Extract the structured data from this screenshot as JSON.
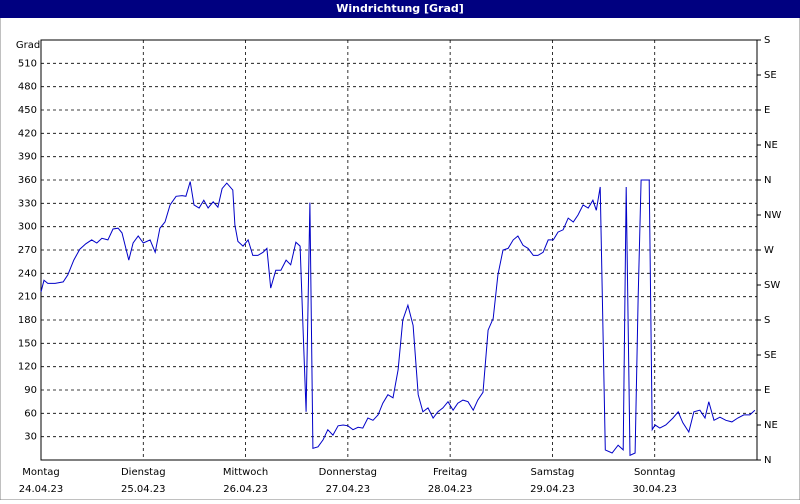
{
  "chart_data": {
    "type": "line",
    "title": "Windrichtung [Grad]",
    "y_label": "Grad",
    "color": "#0000c8",
    "grid": true,
    "xlim": [
      0,
      168
    ],
    "ylim": [
      0,
      540
    ],
    "y2lim": [
      0,
      540
    ],
    "xticks": [
      {
        "value": 0,
        "label": "Montag",
        "date": "24.04.23"
      },
      {
        "value": 24,
        "label": "Dienstag",
        "date": "25.04.23"
      },
      {
        "value": 48,
        "label": "Mittwoch",
        "date": "26.04.23"
      },
      {
        "value": 72,
        "label": "Donnerstag",
        "date": "27.04.23"
      },
      {
        "value": 96,
        "label": "Freitag",
        "date": "28.04.23"
      },
      {
        "value": 120,
        "label": "Samstag",
        "date": "29.04.23"
      },
      {
        "value": 144,
        "label": "Sonntag",
        "date": "30.04.23"
      }
    ],
    "yticks": [
      30,
      60,
      90,
      120,
      150,
      180,
      210,
      240,
      270,
      300,
      330,
      360,
      390,
      420,
      450,
      480,
      510
    ],
    "y2ticks": [
      {
        "value": 0,
        "label": "N"
      },
      {
        "value": 45,
        "label": "NE"
      },
      {
        "value": 90,
        "label": "E"
      },
      {
        "value": 135,
        "label": "SE"
      },
      {
        "value": 180,
        "label": "S"
      },
      {
        "value": 225,
        "label": "SW"
      },
      {
        "value": 270,
        "label": "W"
      },
      {
        "value": 315,
        "label": "NW"
      },
      {
        "value": 360,
        "label": "N"
      },
      {
        "value": 405,
        "label": "NE"
      },
      {
        "value": 450,
        "label": "E"
      },
      {
        "value": 495,
        "label": "SE"
      },
      {
        "value": 540,
        "label": "S"
      }
    ],
    "x": [
      0,
      0.7,
      1.6,
      3.3,
      5.2,
      6.3,
      7.7,
      9.1,
      10.5,
      11.9,
      13.1,
      14.3,
      15.7,
      16.9,
      18.1,
      19,
      20.6,
      21.6,
      22.8,
      24,
      25.6,
      26.8,
      27.9,
      29.1,
      30.3,
      31.7,
      33.1,
      34,
      35,
      35.9,
      37.1,
      38.2,
      39.2,
      40.4,
      41.5,
      42.5,
      43.6,
      45,
      45.5,
      46.2,
      47.4,
      48.6,
      49.7,
      50.9,
      52.1,
      53,
      53.9,
      55.1,
      56.3,
      57.5,
      58.6,
      59.8,
      60.8,
      61.5,
      62.2,
      63.1,
      63.8,
      65,
      66.2,
      67.3,
      68.5,
      69.7,
      70.9,
      72,
      73.2,
      74.4,
      75.5,
      76.7,
      77.9,
      79.1,
      80.2,
      81.4,
      82.6,
      83.8,
      84.9,
      86.1,
      87.3,
      88.5,
      89.6,
      90.8,
      92,
      93.1,
      94.3,
      95.5,
      96.7,
      97.8,
      99,
      100.2,
      101.4,
      102.5,
      103.7,
      104.9,
      106.1,
      107.2,
      108.4,
      109.6,
      110.8,
      111.9,
      113.1,
      114.3,
      115.5,
      116.6,
      117.8,
      119,
      120.2,
      121.3,
      122.5,
      123.7,
      124.9,
      126,
      127.2,
      128.4,
      129.5,
      130.3,
      131.2,
      132.4,
      134,
      135.4,
      136.6,
      137.3,
      138.2,
      139.4,
      140.1,
      140.8,
      142.7,
      143.4,
      144.1,
      145.2,
      146.6,
      148.3,
      149.5,
      150.6,
      152,
      153.2,
      154.6,
      155.8,
      156.7,
      157.9,
      159.3,
      160.7,
      162.1,
      163.5,
      164.9,
      166.3,
      167.5
    ],
    "values": [
      216,
      231,
      227,
      227,
      229,
      238,
      257,
      271,
      278,
      283,
      279,
      285,
      283,
      297,
      298,
      292,
      257,
      279,
      288,
      279,
      283,
      267,
      298,
      306,
      328,
      339,
      340,
      339,
      358,
      328,
      324,
      334,
      324,
      332,
      325,
      349,
      356,
      347,
      302,
      281,
      275,
      283,
      263,
      263,
      267,
      272,
      221,
      244,
      244,
      257,
      251,
      280,
      275,
      167,
      62,
      331,
      15,
      17,
      26,
      39,
      32,
      44,
      45,
      44,
      39,
      42,
      41,
      54,
      51,
      58,
      73,
      84,
      80,
      116,
      180,
      199,
      173,
      84,
      62,
      67,
      54,
      62,
      67,
      75,
      64,
      73,
      77,
      75,
      64,
      77,
      87,
      167,
      182,
      238,
      270,
      272,
      283,
      288,
      276,
      272,
      263,
      263,
      267,
      283,
      283,
      293,
      296,
      311,
      306,
      315,
      328,
      324,
      334,
      321,
      351,
      13,
      9,
      19,
      13,
      351,
      6,
      9,
      206,
      360,
      360,
      39,
      45,
      41,
      45,
      54,
      62,
      48,
      36,
      62,
      64,
      54,
      75,
      51,
      55,
      51,
      49,
      54,
      58,
      58,
      64
    ]
  }
}
